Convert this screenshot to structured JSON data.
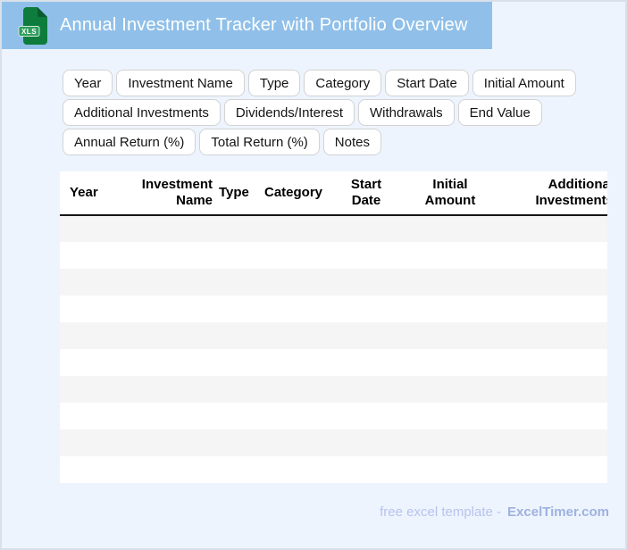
{
  "header": {
    "title": "Annual Investment Tracker with Portfolio Overview",
    "file_badge": "XLS"
  },
  "chips": {
    "rows": [
      [
        "Year",
        "Investment Name",
        "Type",
        "Category",
        "Start Date",
        "Initial Amount"
      ],
      [
        "Additional Investments",
        "Dividends/Interest",
        "Withdrawals",
        "End Value"
      ],
      [
        "Annual Return (%)",
        "Total Return (%)",
        "Notes"
      ]
    ]
  },
  "table": {
    "columns": [
      "Year",
      "Investment Name",
      "Type",
      "Category",
      "Start Date",
      "Initial Amount",
      "Additional Investments"
    ],
    "empty_row_count": 10
  },
  "footer": {
    "prefix": "free excel template -",
    "brand": "ExcelTimer.com"
  },
  "colors": {
    "titlebar": "#90c0e9",
    "page_background": "#edf4fd",
    "icon_green": "#0e7c3d",
    "icon_fold_green": "#0a5c2e",
    "icon_badge_green": "#2f9e5f",
    "row_stripe": "#f5f5f5",
    "footer_text": "#b7c3ee",
    "footer_brand": "#9fb1e1"
  }
}
